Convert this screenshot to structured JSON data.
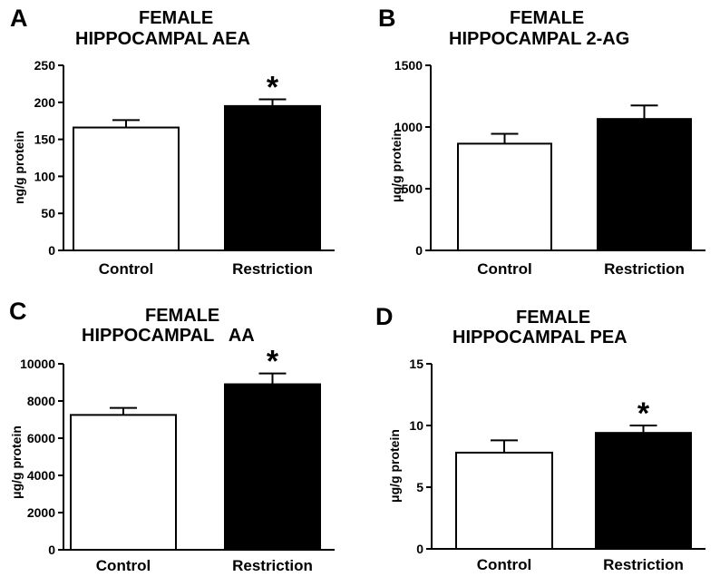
{
  "chart_data": [
    {
      "type": "bar",
      "panel_label": "A",
      "title": [
        "FEMALE",
        "HIPPOCAMPAL AEA"
      ],
      "xlabel": "",
      "ylabel": "ng/g protein",
      "categories": [
        "Control",
        "Restriction"
      ],
      "values": [
        166,
        195
      ],
      "errors": [
        10,
        9
      ],
      "bar_colors": [
        "#ffffff",
        "#000000"
      ],
      "significance": [
        "",
        "*"
      ],
      "ylim": [
        0,
        250
      ],
      "yticks": [
        0,
        50,
        100,
        150,
        200,
        250
      ],
      "ytick_labels": [
        "0",
        "50",
        "100",
        "150",
        "200",
        "250"
      ],
      "grid": false
    },
    {
      "type": "bar",
      "panel_label": "B",
      "title": [
        "FEMALE",
        "HIPPOCAMPAL 2-AG"
      ],
      "xlabel": "",
      "ylabel": "μg/g protein",
      "categories": [
        "Control",
        "Restriction"
      ],
      "values": [
        865,
        1065
      ],
      "errors": [
        80,
        110
      ],
      "bar_colors": [
        "#ffffff",
        "#000000"
      ],
      "significance": [
        "",
        ""
      ],
      "ylim": [
        0,
        1500
      ],
      "yticks": [
        0,
        500,
        1000,
        1500
      ],
      "ytick_labels": [
        "0",
        "500",
        "1000",
        "1500"
      ],
      "grid": false
    },
    {
      "type": "bar",
      "panel_label": "C",
      "title": [
        "FEMALE",
        "HIPPOCAMPAL   AA"
      ],
      "xlabel": "",
      "ylabel": "μg/g protein",
      "categories": [
        "Control",
        "Restriction"
      ],
      "values": [
        7250,
        8900
      ],
      "errors": [
        380,
        580
      ],
      "bar_colors": [
        "#ffffff",
        "#000000"
      ],
      "significance": [
        "",
        "*"
      ],
      "ylim": [
        0,
        10000
      ],
      "yticks": [
        0,
        2000,
        4000,
        6000,
        8000,
        10000
      ],
      "ytick_labels": [
        "0",
        "2000",
        "4000",
        "6000",
        "8000",
        "10000"
      ],
      "grid": false
    },
    {
      "type": "bar",
      "panel_label": "D",
      "title": [
        "FEMALE",
        "HIPPOCAMPAL PEA"
      ],
      "xlabel": "",
      "ylabel": "μg/g protein",
      "categories": [
        "Control",
        "Restriction"
      ],
      "values": [
        7.8,
        9.4
      ],
      "errors": [
        1.0,
        0.6
      ],
      "bar_colors": [
        "#ffffff",
        "#000000"
      ],
      "significance": [
        "",
        "*"
      ],
      "ylim": [
        0,
        15
      ],
      "yticks": [
        0,
        5,
        10,
        15
      ],
      "ytick_labels": [
        "0",
        "5",
        "10",
        "15"
      ],
      "grid": false
    }
  ]
}
